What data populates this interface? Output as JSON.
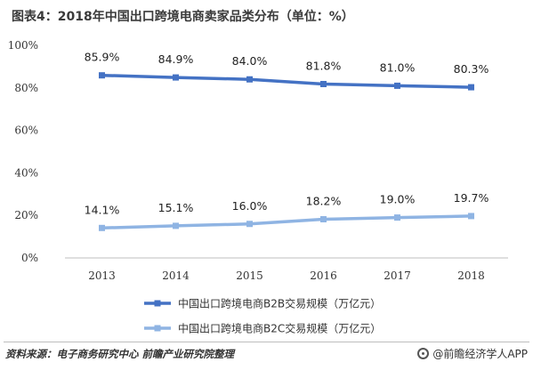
{
  "header": {
    "title": "图表4：2018年中国出口跨境电商卖家品类分布（单位：%）"
  },
  "chart_data": {
    "type": "line",
    "title": "图表4：2018年中国出口跨境电商卖家品类分布（单位：%）",
    "x": [
      "2013",
      "2014",
      "2015",
      "2016",
      "2017",
      "2018"
    ],
    "ylim": [
      0,
      100
    ],
    "y_ticks": [
      "0%",
      "20%",
      "40%",
      "60%",
      "80%",
      "100%"
    ],
    "grid": false,
    "legend_position": "bottom",
    "series": [
      {
        "name": "中国出口跨境电商B2B交易规模（万亿元）",
        "values": [
          85.9,
          84.9,
          84.0,
          81.8,
          81.0,
          80.3
        ],
        "labels": [
          "85.9%",
          "84.9%",
          "84.0%",
          "81.8%",
          "81.0%",
          "80.3%"
        ],
        "color": "#4472c4"
      },
      {
        "name": "中国出口跨境电商B2C交易规模（万亿元）",
        "values": [
          14.1,
          15.1,
          16.0,
          18.2,
          19.0,
          19.7
        ],
        "labels": [
          "14.1%",
          "15.1%",
          "16.0%",
          "18.2%",
          "19.0%",
          "19.7%"
        ],
        "color": "#8fb4e3"
      }
    ]
  },
  "footer": {
    "source": "资料来源：电子商务研究中心 前瞻产业研究院整理",
    "brand": "@前瞻经济学人APP"
  }
}
